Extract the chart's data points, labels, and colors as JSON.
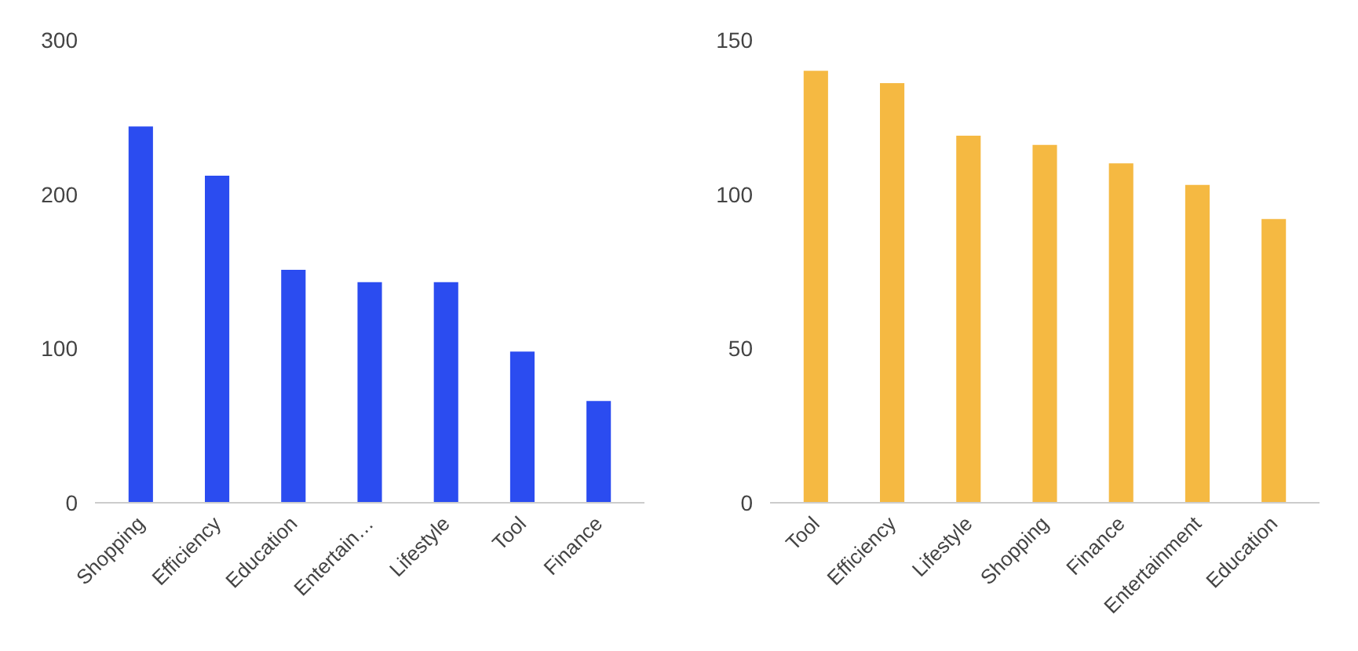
{
  "chart_data": [
    {
      "type": "bar",
      "categories": [
        "Shopping",
        "Efficiency",
        "Education",
        "Entertain…",
        "Lifestyle",
        "Tool",
        "Finance"
      ],
      "values": [
        244,
        212,
        151,
        143,
        143,
        98,
        66
      ],
      "color": "#2b4cf0",
      "ylim": [
        0,
        300
      ],
      "yticks": [
        0,
        100,
        200,
        300
      ],
      "grid": false
    },
    {
      "type": "bar",
      "categories": [
        "Tool",
        "Efficiency",
        "Lifestyle",
        "Shopping",
        "Finance",
        "Entertainment",
        "Education"
      ],
      "values": [
        140,
        136,
        119,
        116,
        110,
        103,
        92
      ],
      "color": "#f5b942",
      "ylim": [
        0,
        150
      ],
      "yticks": [
        0,
        50,
        100,
        150
      ],
      "grid": false
    }
  ]
}
